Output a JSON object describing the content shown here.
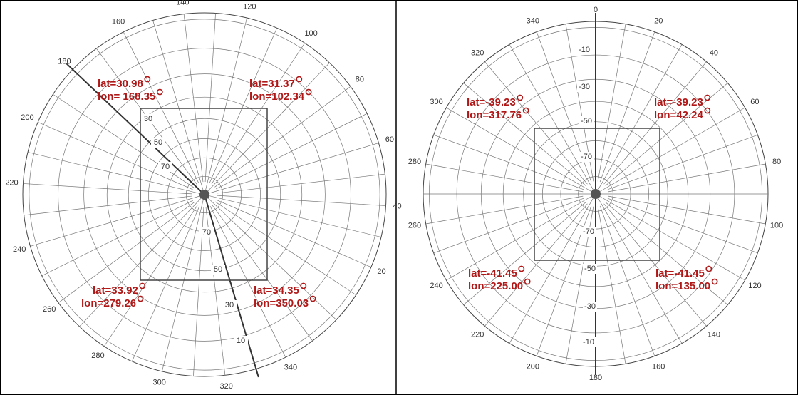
{
  "maps": [
    {
      "lon_labels": [
        140,
        120,
        100,
        80,
        60,
        40,
        20,
        340,
        320,
        300,
        280,
        260,
        240,
        220,
        200,
        180,
        160
      ],
      "lat_labels": [
        30,
        50,
        70,
        70,
        50,
        30,
        10
      ],
      "corners": [
        {
          "lat": "lat=30.98",
          "lon": "lon= 168.35"
        },
        {
          "lat": "lat=31.37",
          "lon": "lon=102.34"
        },
        {
          "lat": "lat=33.92",
          "lon": "lon=279.26"
        },
        {
          "lat": "lat=34.35",
          "lon": "lon=350.03"
        }
      ]
    },
    {
      "lon_labels": [
        0,
        20,
        40,
        60,
        80,
        100,
        120,
        140,
        160,
        180,
        200,
        220,
        240,
        260,
        280,
        300,
        320,
        340
      ],
      "lat_labels": [
        -10,
        -30,
        -50,
        -70,
        -70,
        -50,
        -30,
        -10
      ],
      "corners": [
        {
          "lat": "lat=-39.23",
          "lon": "lon=317.76"
        },
        {
          "lat": "lat=-39.23",
          "lon": "lon=42.24"
        },
        {
          "lat": "lat=-41.45",
          "lon": "lon=225.00"
        },
        {
          "lat": "lat=-41.45",
          "lon": "lon=135.00"
        }
      ]
    }
  ]
}
